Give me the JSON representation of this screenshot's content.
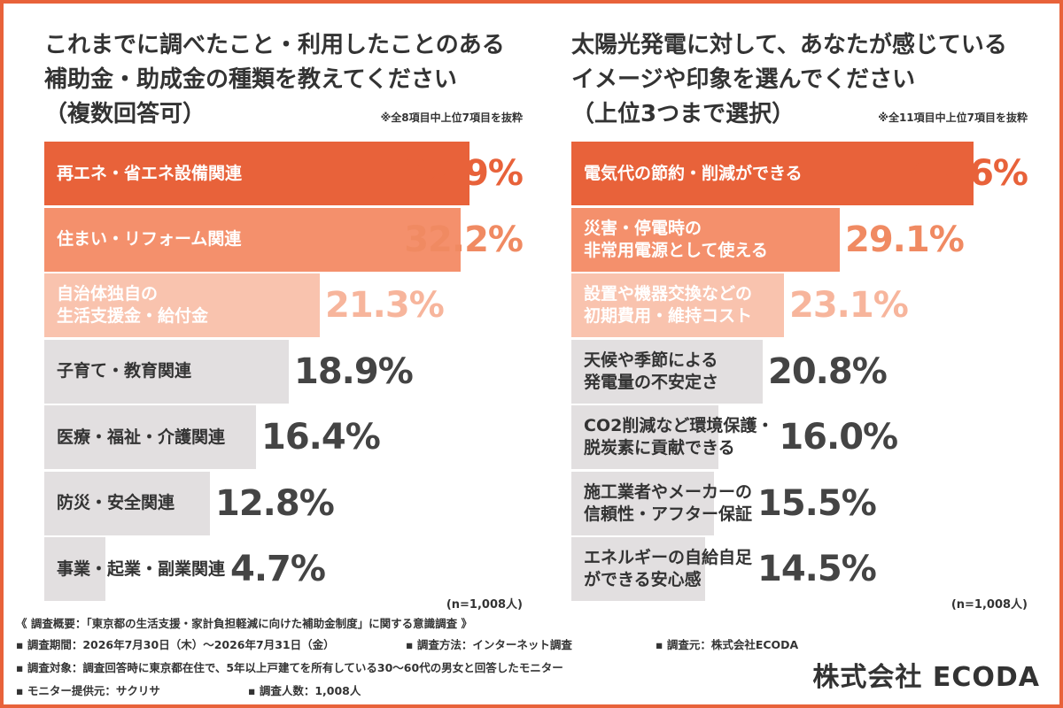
{
  "chart_data": [
    {
      "type": "bar",
      "orientation": "horizontal",
      "title": "これまでに調べたこと・利用したことのある\n補助金・助成金の種類を教えてください\n（複数回答可）",
      "note": "※全8項目中上位7項目を抜粋",
      "categories": [
        "再エネ・省エネ設備関連",
        "住まい・リフォーム関連",
        "自治体独自の\n生活支援金・給付金",
        "子育て・教育関連",
        "医療・福祉・介護関連",
        "防災・安全関連",
        "事業・起業・副業関連"
      ],
      "values": [
        32.9,
        32.2,
        21.3,
        18.9,
        16.4,
        12.8,
        4.7
      ],
      "value_labels": [
        "32.9%",
        "32.2%",
        "21.3%",
        "18.9%",
        "16.4%",
        "12.8%",
        "4.7%"
      ],
      "xlim": [
        0,
        37
      ],
      "sample": "(n=1,008人)"
    },
    {
      "type": "bar",
      "orientation": "horizontal",
      "title": "太陽光発電に対して、あなたが感じている\nイメージや印象を選んでください\n（上位3つまで選択）",
      "note": "※全11項目中上位7項目を抜粋",
      "categories": [
        "電気代の節約・削減ができる",
        "災害・停電時の\n非常用電源として使える",
        "設置や機器交換などの\n初期費用・維持コスト",
        "天候や季節による\n発電量の不安定さ",
        "CO2削減など環境保護・\n脱炭素に貢献できる",
        "施工業者やメーカーの\n信頼性・アフター保証",
        "エネルギーの自給自足\nができる安心感"
      ],
      "values": [
        43.6,
        29.1,
        23.1,
        20.8,
        16.0,
        15.5,
        14.5
      ],
      "value_labels": [
        "43.6%",
        "29.1%",
        "23.1%",
        "20.8%",
        "16.0%",
        "15.5%",
        "14.5%"
      ],
      "xlim": [
        0,
        49.5
      ],
      "sample": "(n=1,008人)"
    }
  ],
  "colors": {
    "frame": "#e8623a",
    "bar1": "#e8623a",
    "bar2": "#f4906c",
    "bar3": "#f9c3ae",
    "bar_rest": "#e2dfe0",
    "text_on_dark": "#ffffff",
    "text_dark": "#333333",
    "value_top": "#e8623a",
    "value_second": "#f08a62",
    "value_third": "#f7b59c",
    "value_rest": "#444444"
  },
  "footer": {
    "overview": "《 調査概要：「東京都の生活支援・家計負担軽減に向けた補助金制度」に関する意識調査 》",
    "period": "▪ 調査期間：2026年7月30日（木）〜2026年7月31日（金）",
    "method": "▪ 調査方法：インターネット調査",
    "source": "▪ 調査元：株式会社ECODA",
    "target": "▪ 調査対象：調査回答時に東京都在住で、5年以上戸建てを所有している30〜60代の男女と回答したモニター",
    "provider": "▪ モニター提供元：サクリサ",
    "count": "▪ 調査人数：1,008人"
  },
  "brand": "株式会社 ECODA"
}
